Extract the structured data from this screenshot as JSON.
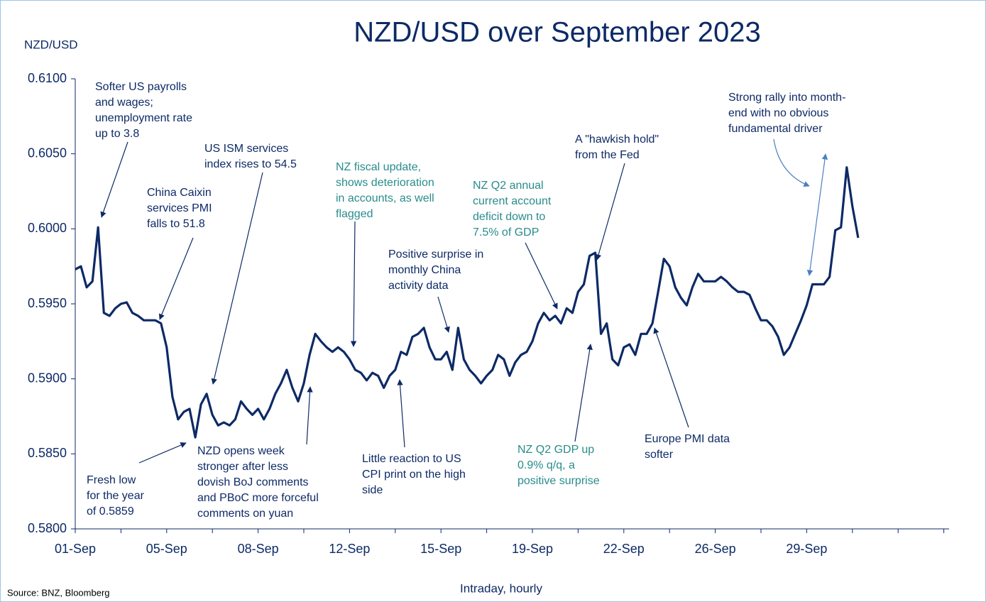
{
  "chart_data": {
    "type": "line",
    "title": "NZD/USD over September 2023",
    "y_axis_label": "NZD/USD",
    "x_axis_label": "Intraday, hourly",
    "source": "Source: BNZ, Bloomberg",
    "categories": [
      "01-Sep",
      null,
      null,
      null,
      null,
      null,
      null,
      null,
      null,
      null,
      null,
      null,
      null,
      null,
      null,
      null,
      "05-Sep",
      null,
      null,
      null,
      null,
      null,
      null,
      null,
      null,
      null,
      null,
      null,
      null,
      null,
      null,
      null,
      "08-Sep",
      null,
      null,
      null,
      null,
      null,
      null,
      null,
      null,
      null,
      null,
      null,
      null,
      null,
      null,
      null,
      "12-Sep",
      null,
      null,
      null,
      null,
      null,
      null,
      null,
      null,
      null,
      null,
      null,
      null,
      null,
      null,
      null,
      "15-Sep",
      null,
      null,
      null,
      null,
      null,
      null,
      null,
      null,
      null,
      null,
      null,
      null,
      null,
      null,
      null,
      "19-Sep",
      null,
      null,
      null,
      null,
      null,
      null,
      null,
      null,
      null,
      null,
      null,
      null,
      null,
      null,
      null,
      "22-Sep",
      null,
      null,
      null,
      null,
      null,
      null,
      null,
      null,
      null,
      null,
      null,
      null,
      null,
      null,
      null,
      "26-Sep",
      null,
      null,
      null,
      null,
      null,
      null,
      null,
      null,
      null,
      null,
      null,
      null,
      null,
      null,
      null,
      "29-Sep",
      null,
      null,
      null,
      null,
      null,
      null,
      null,
      null,
      null,
      null,
      null,
      null,
      null,
      null,
      null,
      null,
      null,
      null,
      null,
      null,
      null,
      null,
      null,
      null
    ],
    "series": [
      {
        "name": "NZD/USD",
        "color": "#0d2a66",
        "values": [
          0.5973,
          0.5975,
          0.5961,
          0.5965,
          0.6001,
          0.5944,
          0.5942,
          0.5947,
          0.595,
          0.5951,
          0.5944,
          0.5942,
          0.5939,
          0.5939,
          0.5939,
          0.5937,
          0.5921,
          0.5888,
          0.5873,
          0.5878,
          0.588,
          0.5861,
          0.5883,
          0.589,
          0.5876,
          0.5869,
          0.5871,
          0.5869,
          0.5873,
          0.5885,
          0.588,
          0.5876,
          0.588,
          0.5873,
          0.588,
          0.589,
          0.5897,
          0.5906,
          0.5894,
          0.5885,
          0.5897,
          0.5916,
          0.593,
          0.5925,
          0.5921,
          0.5918,
          0.5921,
          0.5918,
          0.5913,
          0.5906,
          0.5904,
          0.5899,
          0.5904,
          0.5902,
          0.5894,
          0.5902,
          0.5906,
          0.5918,
          0.5916,
          0.5928,
          0.593,
          0.5934,
          0.5921,
          0.5913,
          0.5913,
          0.5918,
          0.5906,
          0.5934,
          0.5913,
          0.5906,
          0.5902,
          0.5897,
          0.5902,
          0.5906,
          0.5916,
          0.5913,
          0.5902,
          0.5911,
          0.5916,
          0.5918,
          0.5925,
          0.5937,
          0.5944,
          0.5939,
          0.5942,
          0.5937,
          0.5947,
          0.5944,
          0.5958,
          0.5963,
          0.5982,
          0.5984,
          0.593,
          0.5937,
          0.5913,
          0.5909,
          0.5921,
          0.5923,
          0.5916,
          0.593,
          0.593,
          0.5937,
          0.5958,
          0.598,
          0.5975,
          0.5961,
          0.5954,
          0.5949,
          0.5961,
          0.597,
          0.5965,
          0.5965,
          0.5965,
          0.5968,
          0.5965,
          0.5961,
          0.5958,
          0.5958,
          0.5956,
          0.5947,
          0.5939,
          0.5939,
          0.5935,
          0.5928,
          0.5916,
          0.5921,
          0.593,
          0.5939,
          0.5949,
          0.5963,
          0.5963,
          0.5963,
          0.5968,
          0.5999,
          0.6001,
          0.6041,
          0.6015,
          0.5994,
          null,
          null,
          null,
          null,
          null,
          null,
          null,
          null,
          null,
          null,
          null,
          null,
          null,
          null,
          null
        ]
      }
    ],
    "ylim": [
      0.58,
      0.61
    ],
    "yticks": [
      {
        "value": 0.58,
        "label": "0.5800"
      },
      {
        "value": 0.585,
        "label": "0.5850"
      },
      {
        "value": 0.59,
        "label": "0.5900"
      },
      {
        "value": 0.595,
        "label": "0.5950"
      },
      {
        "value": 0.6,
        "label": "0.6000"
      },
      {
        "value": 0.605,
        "label": "0.6050"
      },
      {
        "value": 0.61,
        "label": "0.6100"
      }
    ],
    "grid": false,
    "annotations": [
      {
        "lines": [
          "Softer US payrolls",
          "and wages;",
          "unemployment rate",
          "up to 3.8"
        ],
        "color": "#0d2a66"
      },
      {
        "lines": [
          "China Caixin",
          "services PMI",
          "falls to 51.8"
        ],
        "color": "#0d2a66"
      },
      {
        "lines": [
          "US ISM services",
          "index rises to 54.5"
        ],
        "color": "#0d2a66"
      },
      {
        "lines": [
          "NZ fiscal update,",
          "shows deterioration",
          "in accounts, as well",
          "flagged"
        ],
        "color": "#2a8c8c"
      },
      {
        "lines": [
          "NZ Q2 annual",
          "current account",
          "deficit down to",
          "7.5% of GDP"
        ],
        "color": "#2a8c8c"
      },
      {
        "lines": [
          "A \"hawkish hold\"",
          "from the Fed"
        ],
        "color": "#0d2a66"
      },
      {
        "lines": [
          "Strong rally into month-",
          "end with no obvious",
          "fundamental driver"
        ],
        "color": "#0d2a66"
      },
      {
        "lines": [
          "Positive surprise in",
          "monthly China",
          "activity data"
        ],
        "color": "#0d2a66"
      },
      {
        "lines": [
          "Fresh low",
          "for the year",
          "of 0.5859"
        ],
        "color": "#0d2a66"
      },
      {
        "lines": [
          "NZD opens week",
          "stronger after less",
          "dovish BoJ comments",
          "and PBoC more forceful",
          "comments on yuan"
        ],
        "color": "#0d2a66"
      },
      {
        "lines": [
          "Little reaction to US",
          "CPI print on the high",
          "side"
        ],
        "color": "#0d2a66"
      },
      {
        "lines": [
          "NZ Q2 GDP up",
          "0.9% q/q, a",
          "positive surprise"
        ],
        "color": "#2a8c8c"
      },
      {
        "lines": [
          "Europe PMI data",
          "softer"
        ],
        "color": "#0d2a66"
      }
    ]
  }
}
